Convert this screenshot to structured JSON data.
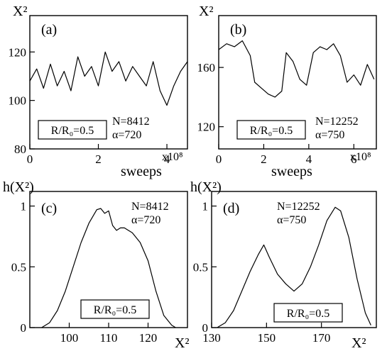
{
  "figure": {
    "shared_xlabel_top": "sweeps",
    "shared_ylabel_bottom": "h(X²)"
  },
  "chart_data": [
    {
      "id": "a",
      "type": "line",
      "panel_label": "(a)",
      "ylabel": "X²",
      "xlabel": "sweeps",
      "x_multiplier": "x10⁸",
      "xlim": [
        0,
        4.6
      ],
      "ylim": [
        80,
        135
      ],
      "xticks": [
        0,
        2,
        4
      ],
      "yticks": [
        80,
        100,
        120
      ],
      "box_label": "R/R₀=0.5",
      "annotations": [
        "N=8412",
        "α=720"
      ],
      "series": [
        {
          "x": [
            0,
            0.2,
            0.4,
            0.6,
            0.8,
            1.0,
            1.2,
            1.4,
            1.6,
            1.8,
            2.0,
            2.2,
            2.4,
            2.6,
            2.8,
            3.0,
            3.2,
            3.4,
            3.6,
            3.8,
            4.0,
            4.2,
            4.4,
            4.6
          ],
          "values": [
            108,
            113,
            105,
            115,
            106,
            112,
            104,
            118,
            110,
            114,
            106,
            120,
            112,
            116,
            108,
            114,
            110,
            106,
            116,
            104,
            98,
            106,
            112,
            116
          ]
        }
      ]
    },
    {
      "id": "b",
      "type": "line",
      "panel_label": "(b)",
      "ylabel": "X²",
      "xlabel": "sweeps",
      "x_multiplier": "x10⁸",
      "xlim": [
        0,
        7.0
      ],
      "ylim": [
        105,
        195
      ],
      "xticks": [
        0,
        2,
        4,
        6
      ],
      "yticks": [
        120,
        160
      ],
      "box_label": "R/R₀=0.5",
      "annotations": [
        "N=12252",
        "α=750"
      ],
      "series": [
        {
          "x": [
            0,
            0.35,
            0.7,
            1.05,
            1.4,
            1.6,
            1.9,
            2.2,
            2.5,
            2.8,
            3.0,
            3.3,
            3.6,
            3.9,
            4.2,
            4.5,
            4.8,
            5.1,
            5.4,
            5.7,
            6.0,
            6.3,
            6.6,
            6.9
          ],
          "values": [
            172,
            176,
            174,
            178,
            168,
            150,
            146,
            142,
            140,
            144,
            170,
            164,
            152,
            148,
            170,
            174,
            172,
            176,
            168,
            150,
            155,
            148,
            162,
            152
          ]
        }
      ]
    },
    {
      "id": "c",
      "type": "line",
      "panel_label": "(c)",
      "ylabel": "h(X²)",
      "xlabel": "X²",
      "xlim": [
        90,
        130
      ],
      "ylim": [
        0,
        1.12
      ],
      "xticks": [
        100,
        110,
        120
      ],
      "yticks": [
        0,
        0.5,
        1
      ],
      "ytick_labels": [
        "0",
        "0.5",
        "1"
      ],
      "box_label": "R/R₀=0.5",
      "annotations": [
        "N=8412",
        "α=720"
      ],
      "series": [
        {
          "x": [
            93,
            95,
            97,
            99,
            101,
            103,
            105,
            107,
            108,
            109,
            110,
            111,
            112,
            113,
            114,
            115,
            116,
            118,
            120,
            122,
            124,
            126,
            127
          ],
          "values": [
            0.0,
            0.04,
            0.14,
            0.3,
            0.5,
            0.7,
            0.86,
            0.97,
            0.98,
            0.94,
            0.96,
            0.84,
            0.8,
            0.82,
            0.82,
            0.8,
            0.78,
            0.7,
            0.55,
            0.3,
            0.1,
            0.02,
            0.0
          ]
        }
      ]
    },
    {
      "id": "d",
      "type": "line",
      "panel_label": "(d)",
      "ylabel": "h(X²)",
      "xlabel": "X²",
      "xlim": [
        130,
        190
      ],
      "ylim": [
        0,
        1.12
      ],
      "xticks": [
        130,
        150,
        170
      ],
      "yticks": [
        0,
        0.5,
        1
      ],
      "ytick_labels": [
        "0",
        "0.5",
        "1"
      ],
      "box_label": "R/R₀=0.5",
      "annotations": [
        "N=12252",
        "α=750"
      ],
      "series": [
        {
          "x": [
            132,
            135,
            138,
            141,
            144,
            147,
            149,
            151,
            154,
            157,
            160,
            163,
            166,
            169,
            172,
            175,
            177,
            180,
            183,
            186,
            188
          ],
          "values": [
            0.0,
            0.04,
            0.14,
            0.3,
            0.46,
            0.6,
            0.68,
            0.58,
            0.44,
            0.36,
            0.3,
            0.36,
            0.5,
            0.68,
            0.88,
            0.99,
            0.96,
            0.74,
            0.4,
            0.12,
            0.02
          ]
        }
      ]
    }
  ]
}
